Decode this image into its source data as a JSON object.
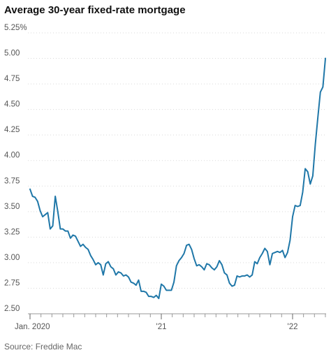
{
  "title": "Average 30-year fixed-rate mortgage",
  "source": "Source: Freddie Mac",
  "chart_data": {
    "type": "line",
    "title": "Average 30-year fixed-rate mortgage",
    "xlabel": "",
    "ylabel": "",
    "ylim": [
      2.5,
      5.25
    ],
    "y_ticks": [
      "5.25%",
      "5.00",
      "4.75",
      "4.50",
      "4.25",
      "4.00",
      "3.75",
      "3.50",
      "3.25",
      "3.00",
      "2.75",
      "2.50"
    ],
    "x_ticks": [
      {
        "label": "Jan. 2020",
        "index": 0
      },
      {
        "label": "'21",
        "index": 52
      },
      {
        "label": "'22",
        "index": 104
      }
    ],
    "grid": true,
    "series": [
      {
        "values": [
          3.72,
          3.65,
          3.64,
          3.6,
          3.51,
          3.45,
          3.47,
          3.49,
          3.33,
          3.36,
          3.65,
          3.5,
          3.33,
          3.33,
          3.31,
          3.31,
          3.24,
          3.27,
          3.26,
          3.21,
          3.16,
          3.18,
          3.15,
          3.13,
          3.07,
          3.03,
          2.98,
          3.0,
          2.98,
          2.88,
          2.99,
          3.01,
          2.96,
          2.94,
          2.88,
          2.91,
          2.9,
          2.87,
          2.88,
          2.86,
          2.81,
          2.8,
          2.78,
          2.83,
          2.72,
          2.72,
          2.71,
          2.67,
          2.67,
          2.66,
          2.68,
          2.65,
          2.79,
          2.77,
          2.73,
          2.73,
          2.73,
          2.81,
          2.97,
          3.02,
          3.05,
          3.09,
          3.17,
          3.18,
          3.13,
          3.04,
          2.97,
          2.98,
          2.96,
          2.93,
          2.99,
          2.98,
          2.95,
          2.93,
          2.96,
          3.02,
          2.98,
          2.9,
          2.88,
          2.8,
          2.77,
          2.78,
          2.87,
          2.86,
          2.87,
          2.87,
          2.88,
          2.86,
          2.88,
          3.01,
          2.99,
          3.05,
          3.09,
          3.14,
          3.11,
          2.98,
          3.09,
          3.1,
          3.11,
          3.1,
          3.12,
          3.05,
          3.1,
          3.22,
          3.45,
          3.56,
          3.55,
          3.56,
          3.69,
          3.92,
          3.89,
          3.77,
          3.85,
          4.16,
          4.42,
          4.67,
          4.72,
          5.0
        ]
      }
    ]
  }
}
